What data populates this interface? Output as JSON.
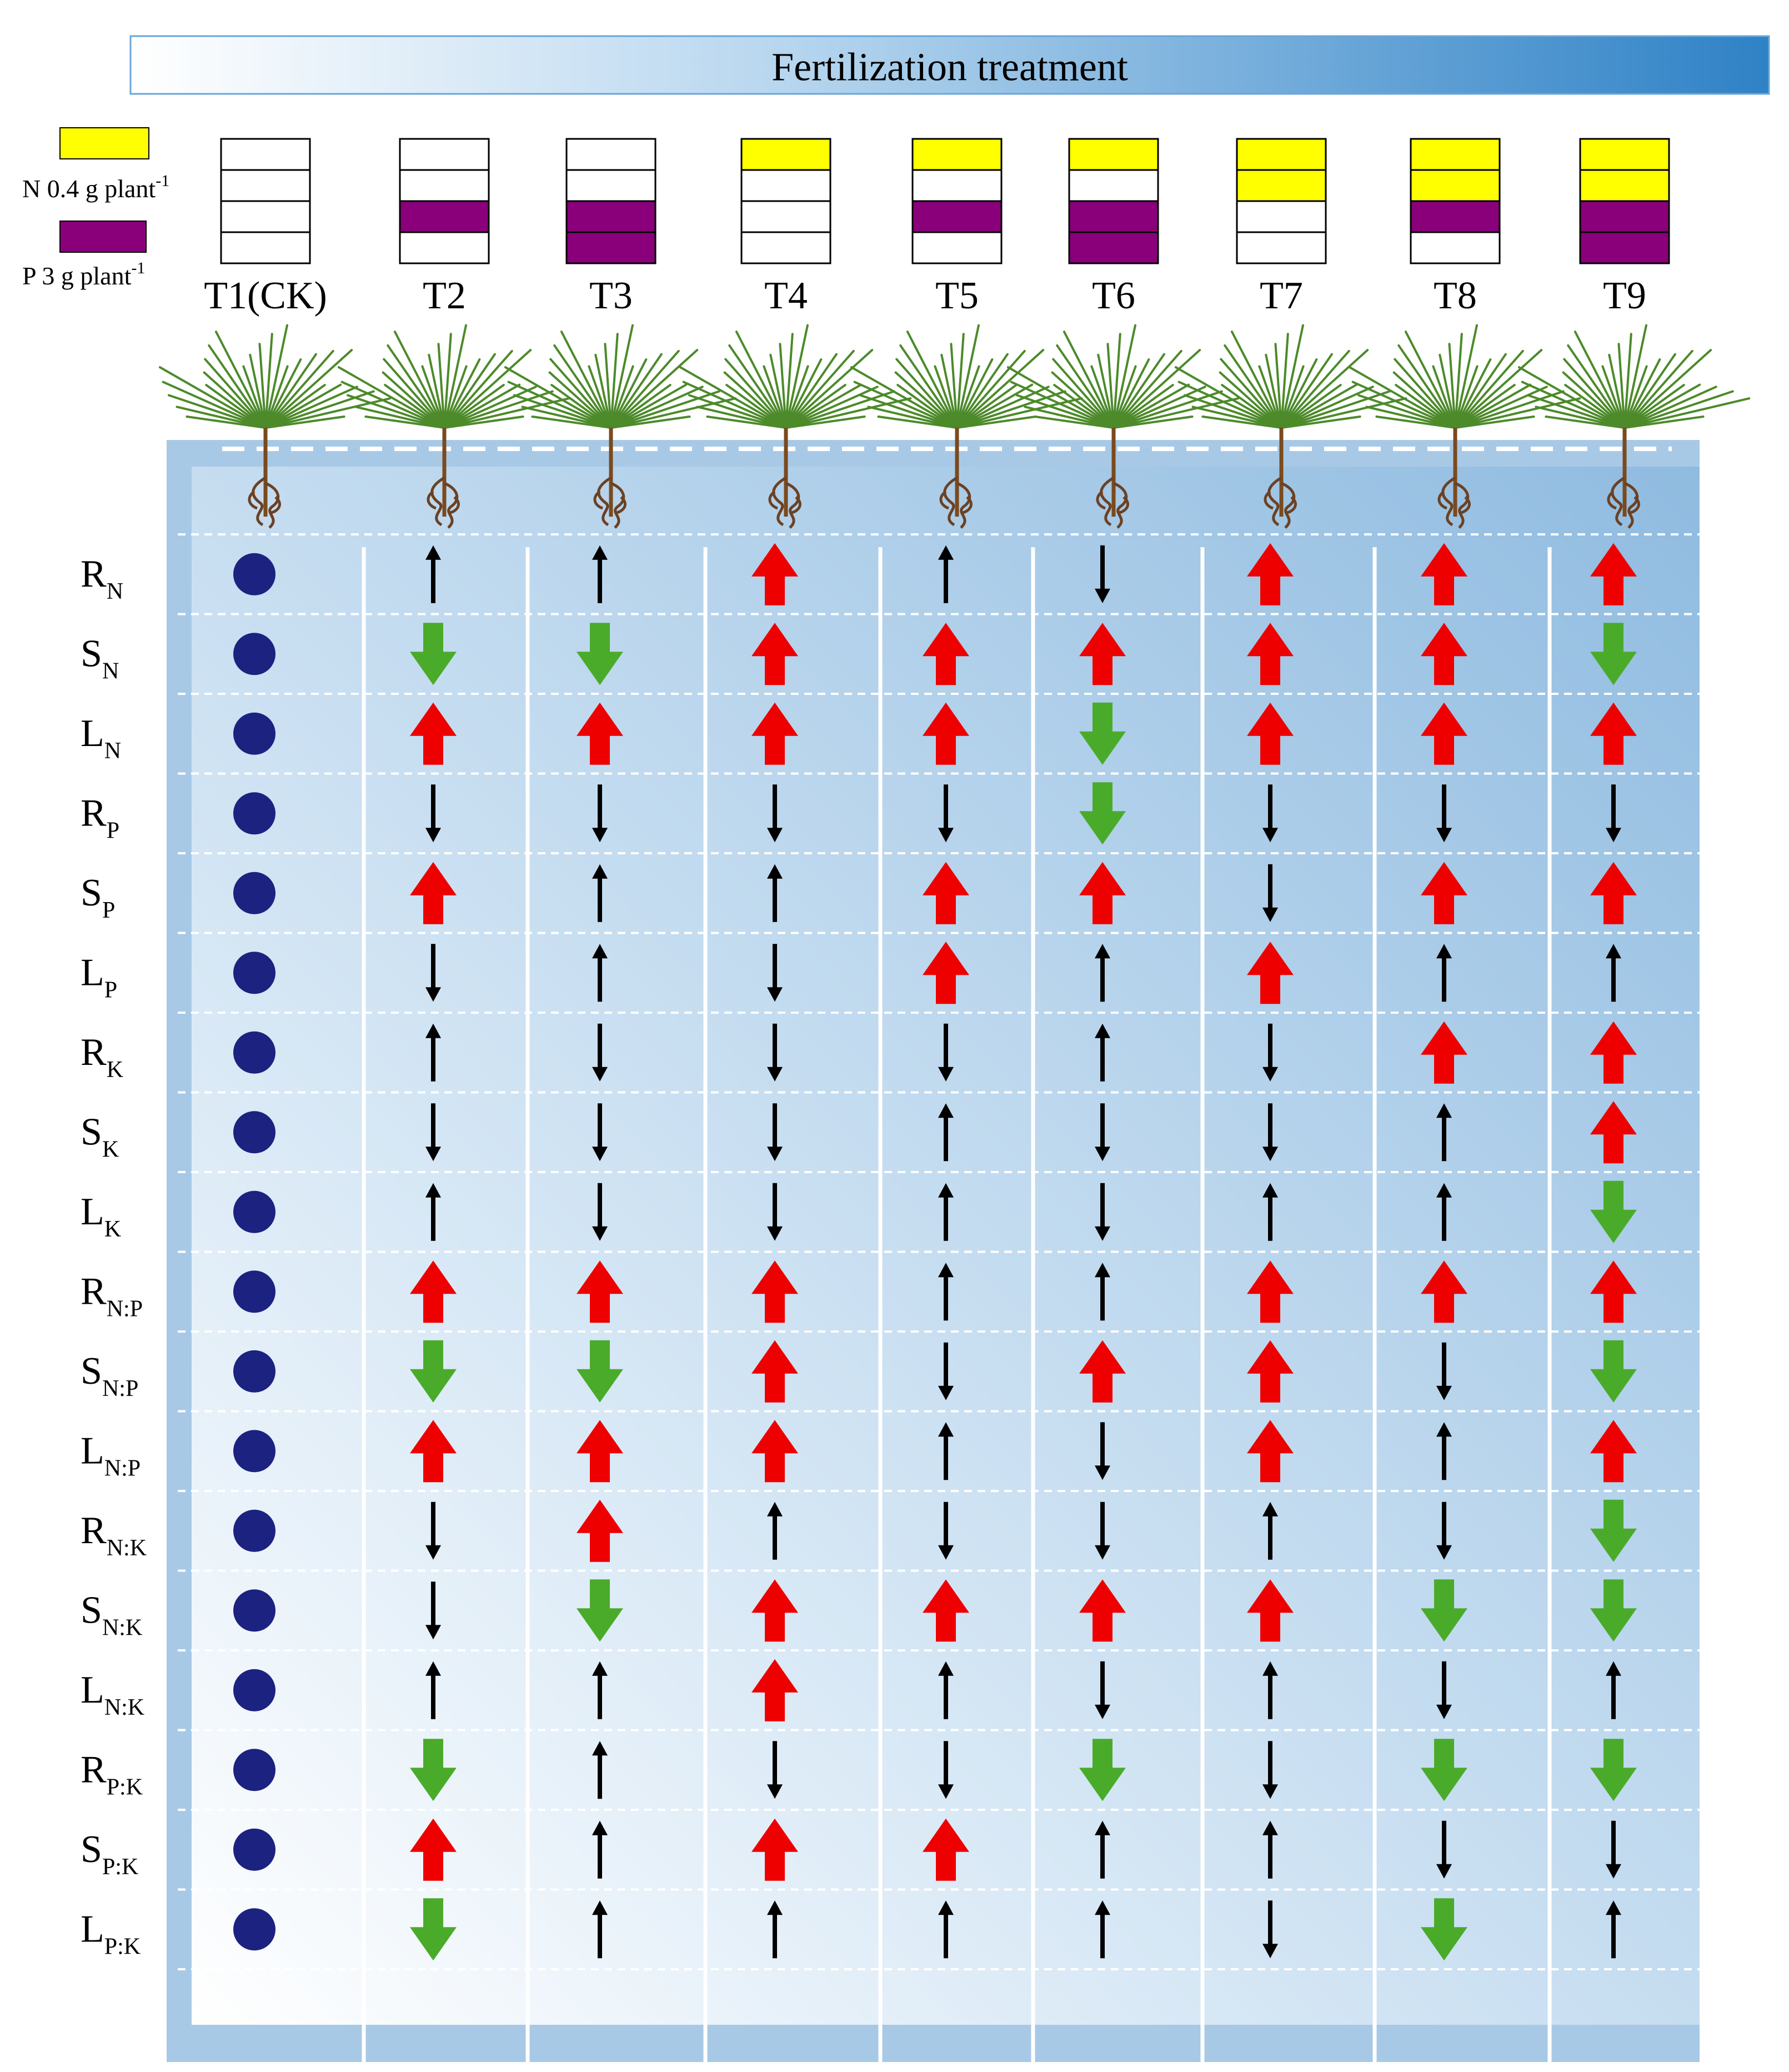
{
  "header": {
    "title": "Fertilization treatment"
  },
  "legend": {
    "n_label": "N 0.4 g plant",
    "n_sup": "-1",
    "p_label": "P  3 g plant",
    "p_sup": "-1"
  },
  "colors": {
    "nitrogen_box": "#ffff00",
    "phosphorus_box": "#8a007a",
    "up_significant": "#ee0000",
    "down_significant": "#4aab2a",
    "nonsignificant": "#000000",
    "control_dot": "#1c2280",
    "panel": "#a8c9e6",
    "header_gradient_end": "#2f82c6"
  },
  "treatments": [
    {
      "label": "T1(CK)",
      "n_units": 0,
      "p_units": 0
    },
    {
      "label": "T2",
      "n_units": 0,
      "p_units": 1
    },
    {
      "label": "T3",
      "n_units": 0,
      "p_units": 2
    },
    {
      "label": "T4",
      "n_units": 1,
      "p_units": 0
    },
    {
      "label": "T5",
      "n_units": 1,
      "p_units": 1
    },
    {
      "label": "T6",
      "n_units": 1,
      "p_units": 2
    },
    {
      "label": "T7",
      "n_units": 2,
      "p_units": 0
    },
    {
      "label": "T8",
      "n_units": 2,
      "p_units": 1
    },
    {
      "label": "T9",
      "n_units": 2,
      "p_units": 2
    }
  ],
  "rows": [
    {
      "main": "R",
      "sub": "N"
    },
    {
      "main": "S",
      "sub": "N"
    },
    {
      "main": "L",
      "sub": "N"
    },
    {
      "main": "R",
      "sub": "P"
    },
    {
      "main": "S",
      "sub": "P"
    },
    {
      "main": "L",
      "sub": "P"
    },
    {
      "main": "R",
      "sub": "K"
    },
    {
      "main": "S",
      "sub": "K"
    },
    {
      "main": "L",
      "sub": "K"
    },
    {
      "main": "R",
      "sub": "N:P"
    },
    {
      "main": "S",
      "sub": "N:P"
    },
    {
      "main": "L",
      "sub": "N:P"
    },
    {
      "main": "R",
      "sub": "N:K"
    },
    {
      "main": "S",
      "sub": "N:K"
    },
    {
      "main": "L",
      "sub": "N:K"
    },
    {
      "main": "R",
      "sub": "P:K"
    },
    {
      "main": "S",
      "sub": "P:K"
    },
    {
      "main": "L",
      "sub": "P:K"
    }
  ],
  "arrow_legend": {
    "U": "increase, significant",
    "D": "decrease, significant",
    "u": "increase, not significant",
    "d": "decrease, not significant"
  },
  "effects": [
    [
      "u",
      "u",
      "U",
      "u",
      "d",
      "U",
      "U",
      "U"
    ],
    [
      "D",
      "D",
      "U",
      "U",
      "U",
      "U",
      "U",
      "D"
    ],
    [
      "U",
      "U",
      "U",
      "U",
      "D",
      "U",
      "U",
      "U"
    ],
    [
      "d",
      "d",
      "d",
      "d",
      "D",
      "d",
      "d",
      "d"
    ],
    [
      "U",
      "u",
      "u",
      "U",
      "U",
      "d",
      "U",
      "U"
    ],
    [
      "d",
      "u",
      "d",
      "U",
      "u",
      "U",
      "u",
      "u"
    ],
    [
      "u",
      "d",
      "d",
      "d",
      "u",
      "d",
      "U",
      "U"
    ],
    [
      "d",
      "d",
      "d",
      "u",
      "d",
      "d",
      "u",
      "U"
    ],
    [
      "u",
      "d",
      "d",
      "u",
      "d",
      "u",
      "u",
      "D"
    ],
    [
      "U",
      "U",
      "U",
      "u",
      "u",
      "U",
      "U",
      "U"
    ],
    [
      "D",
      "D",
      "U",
      "d",
      "U",
      "U",
      "d",
      "D"
    ],
    [
      "U",
      "U",
      "U",
      "u",
      "d",
      "U",
      "u",
      "U"
    ],
    [
      "d",
      "U",
      "u",
      "d",
      "d",
      "u",
      "d",
      "D"
    ],
    [
      "d",
      "D",
      "U",
      "U",
      "U",
      "U",
      "D",
      "D"
    ],
    [
      "u",
      "u",
      "U",
      "u",
      "d",
      "u",
      "d",
      "u"
    ],
    [
      "D",
      "u",
      "d",
      "d",
      "D",
      "d",
      "D",
      "D"
    ],
    [
      "U",
      "u",
      "U",
      "U",
      "u",
      "u",
      "d",
      "d"
    ],
    [
      "D",
      "u",
      "u",
      "u",
      "u",
      "d",
      "D",
      "u"
    ]
  ]
}
